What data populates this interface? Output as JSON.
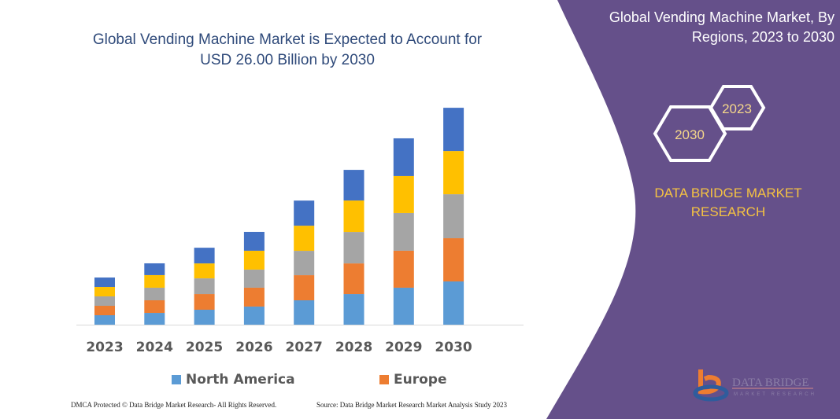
{
  "title": "Global Vending Machine Market is Expected to Account for USD 26.00 Billion by 2030",
  "side_panel": {
    "title": "Global Vending Machine Market, By Regions, 2023 to 2030",
    "hex_year_front": "2030",
    "hex_year_back": "2023",
    "brand": "DATA BRIDGE MARKET RESEARCH",
    "logo_text": "DATA BRIDGE MARKET RESEARCH",
    "color": "#65508A"
  },
  "footer": {
    "left": "DMCA Protected © Data Bridge Market Research- All Rights Reserved.",
    "right": "Source: Data Bridge Market Research Market Analysis Study 2023"
  },
  "chart_data": {
    "type": "bar",
    "stacked": true,
    "title": "Global Vending Machine Market is Expected to Account for USD 26.00 Billion by 2030",
    "categories": [
      "2023",
      "2024",
      "2025",
      "2026",
      "2027",
      "2028",
      "2029",
      "2030"
    ],
    "series": [
      {
        "name": "North America",
        "color": "#5B9BD5",
        "values": [
          1.13,
          1.41,
          1.79,
          2.17,
          2.92,
          3.67,
          4.43,
          5.18
        ]
      },
      {
        "name": "Europe",
        "color": "#ED7D31",
        "values": [
          1.13,
          1.51,
          1.88,
          2.26,
          3.01,
          3.67,
          4.43,
          5.18
        ]
      },
      {
        "color": "#A5A5A5",
        "values": [
          1.13,
          1.51,
          1.88,
          2.17,
          2.92,
          3.77,
          4.52,
          5.27
        ]
      },
      {
        "color": "#FFC000",
        "values": [
          1.13,
          1.51,
          1.79,
          2.26,
          3.01,
          3.77,
          4.43,
          5.18
        ]
      },
      {
        "color": "#4472C4",
        "values": [
          1.13,
          1.41,
          1.88,
          2.26,
          3.01,
          3.67,
          4.52,
          5.18
        ]
      }
    ],
    "ylim": [
      0,
      26
    ],
    "y_axis_shown": false,
    "grid": false,
    "legend": {
      "placement": "bottom",
      "entries": [
        "North America",
        "Europe"
      ]
    }
  }
}
